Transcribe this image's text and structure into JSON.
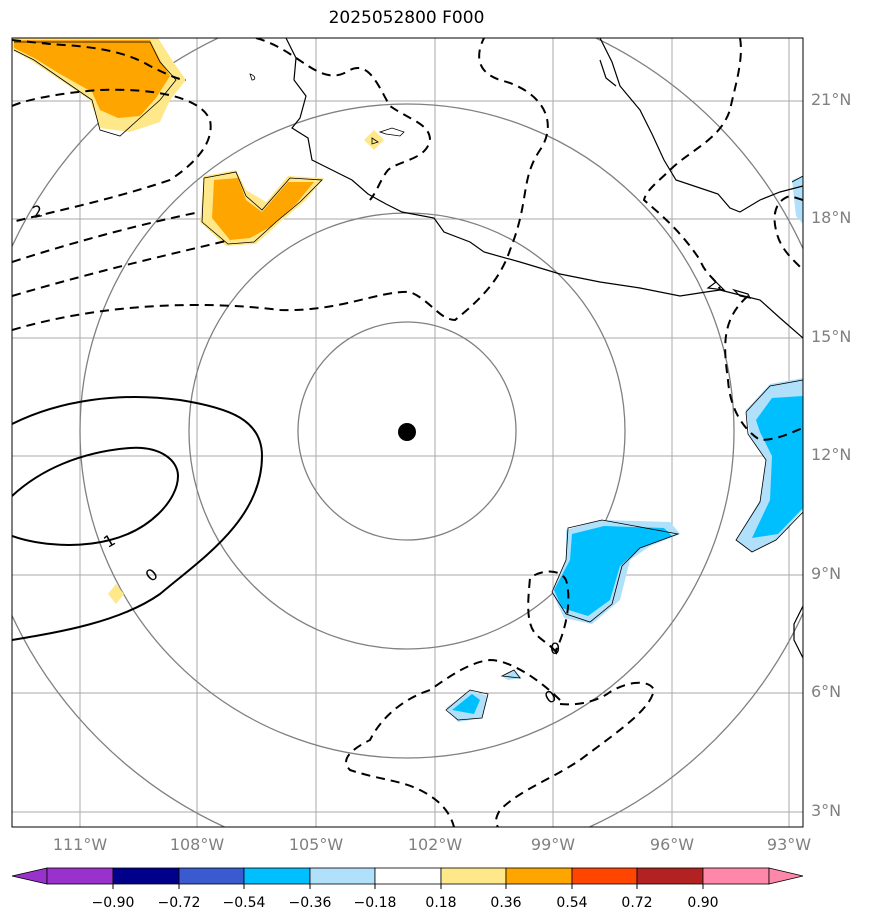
{
  "title": "2025052800 F000",
  "lat_labels": [
    "21°N",
    "18°N",
    "15°N",
    "12°N",
    "9°N",
    "6°N",
    "3°N"
  ],
  "lon_labels": [
    "111°W",
    "108°W",
    "105°W",
    "102°W",
    "99°W",
    "96°W",
    "93°W"
  ],
  "contour_labels": [
    "2",
    "1",
    "0",
    "0",
    "0"
  ],
  "colorbar": {
    "ticks": [
      "−0.90",
      "−0.72",
      "−0.54",
      "−0.36",
      "−0.18",
      "0.18",
      "0.36",
      "0.54",
      "0.72",
      "0.90"
    ],
    "colors": [
      "#9932cc",
      "#00008b",
      "#3a5bd0",
      "#00bfff",
      "#b0e0fa",
      "#ffffff",
      "#ffe88a",
      "#ffa500",
      "#ff4500",
      "#b22222",
      "#ff88aa"
    ]
  },
  "center_marker": {
    "lat": 12.6,
    "lon": -102.6
  }
}
